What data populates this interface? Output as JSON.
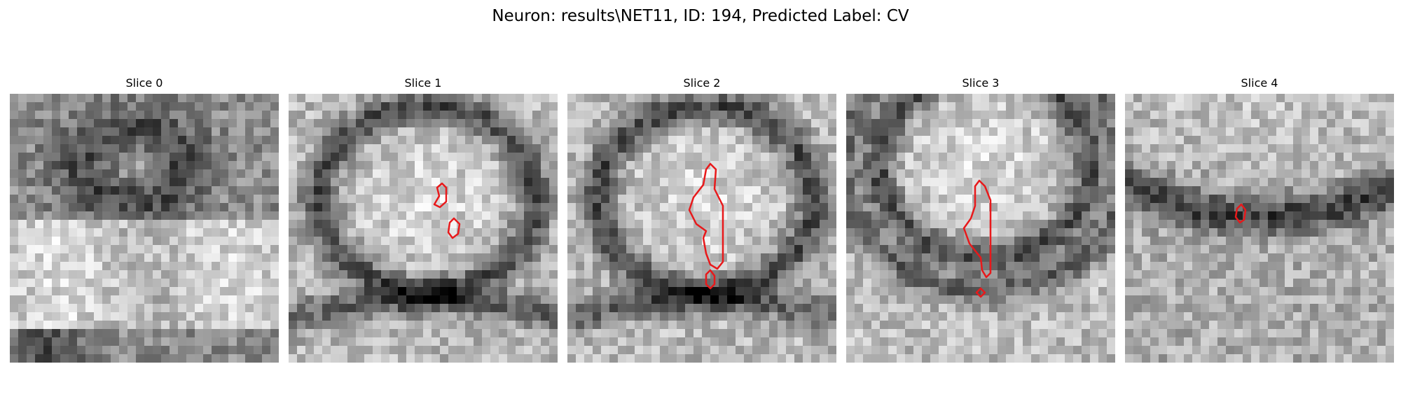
{
  "figure": {
    "title": "Neuron: results\\NET11, ID: 194, Predicted Label: CV"
  },
  "panels": [
    {
      "title": "Slice 0",
      "pattern": "membrane-top-band",
      "has_contour": false
    },
    {
      "title": "Slice 1",
      "pattern": "ring",
      "has_contour": true
    },
    {
      "title": "Slice 2",
      "pattern": "ring",
      "has_contour": true
    },
    {
      "title": "Slice 3",
      "pattern": "ring-double",
      "has_contour": true
    },
    {
      "title": "Slice 4",
      "pattern": "arc-bottom",
      "has_contour": true
    }
  ],
  "style": {
    "contour_color": "#e8191b",
    "colormap": "gray"
  }
}
